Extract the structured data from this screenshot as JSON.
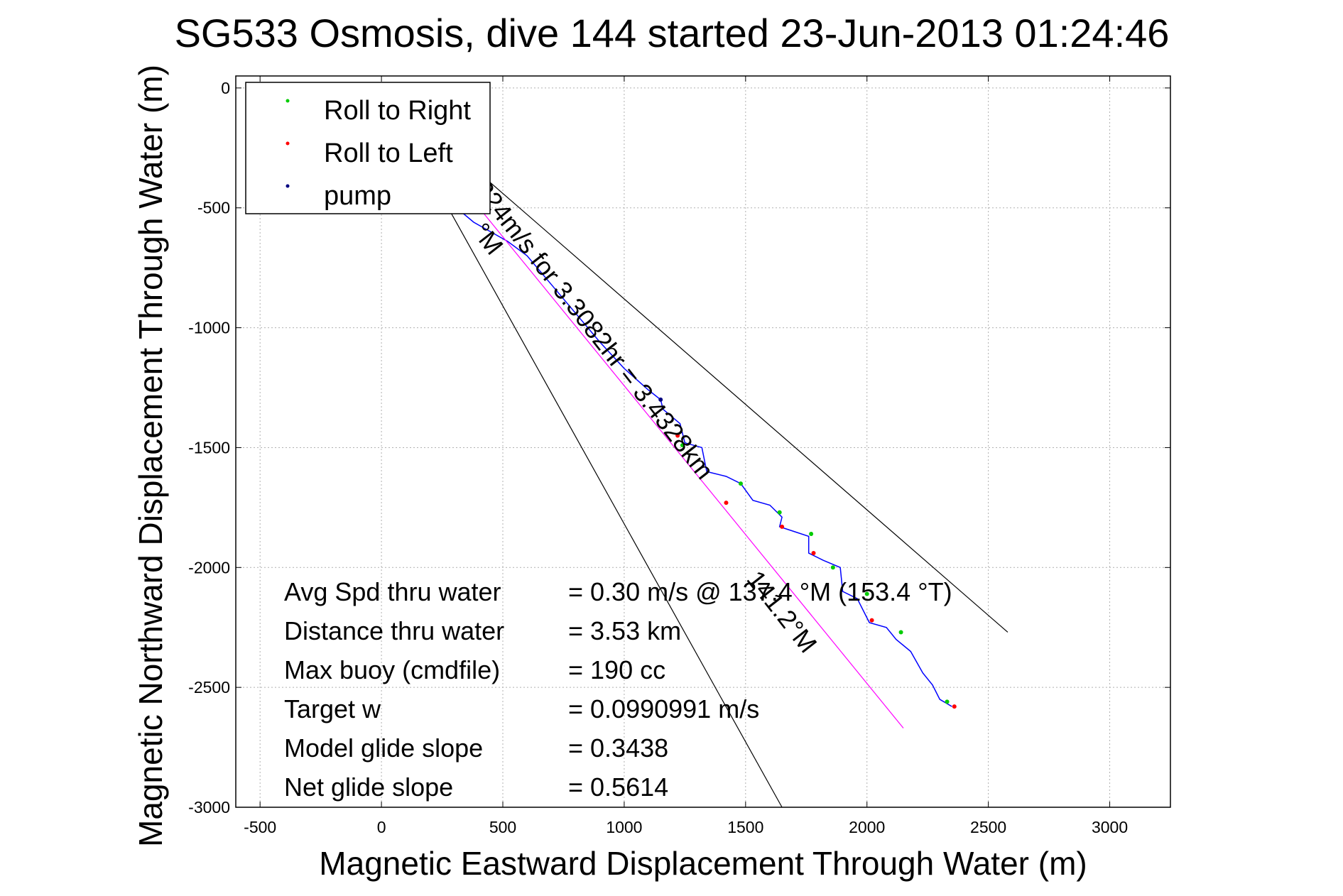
{
  "chart_data": {
    "type": "line",
    "title": "SG533 Osmosis, dive 144 started 23-Jun-2013 01:24:46",
    "xlabel": "Magnetic Eastward Displacement Through Water (m)",
    "ylabel": "Magnetic Northward Displacement Through Water (m)",
    "xlim": [
      -600,
      3250
    ],
    "ylim": [
      -3000,
      50
    ],
    "grid": true,
    "legend_position": "top-left",
    "x_ticks": [
      -500,
      0,
      500,
      1000,
      1500,
      2000,
      2500,
      3000
    ],
    "y_ticks": [
      0,
      -500,
      -1000,
      -1500,
      -2000,
      -2500,
      -3000
    ],
    "x_tick_labels": [
      "-500",
      "0",
      "500",
      "1000",
      "1500",
      "2000",
      "2500",
      "3000"
    ],
    "y_tick_labels": [
      "0",
      "-500",
      "-1000",
      "-1500",
      "-2000",
      "-2500",
      "-3000"
    ],
    "legend": [
      {
        "label": "Roll to Right",
        "color": "#00cc00"
      },
      {
        "label": "Roll to Left",
        "color": "#ff0000"
      },
      {
        "label": "pump",
        "color": "#000080"
      }
    ],
    "series": [
      {
        "name": "track",
        "color": "#0000ff",
        "points": [
          [
            0,
            0
          ],
          [
            60,
            -160
          ],
          [
            150,
            -320
          ],
          [
            250,
            -450
          ],
          [
            380,
            -560
          ],
          [
            520,
            -640
          ],
          [
            600,
            -700
          ],
          [
            700,
            -820
          ],
          [
            800,
            -940
          ],
          [
            900,
            -1060
          ],
          [
            1000,
            -1170
          ],
          [
            1100,
            -1260
          ],
          [
            1150,
            -1300
          ],
          [
            1160,
            -1340
          ],
          [
            1230,
            -1400
          ],
          [
            1250,
            -1480
          ],
          [
            1320,
            -1500
          ],
          [
            1340,
            -1600
          ],
          [
            1420,
            -1620
          ],
          [
            1480,
            -1650
          ],
          [
            1530,
            -1720
          ],
          [
            1600,
            -1740
          ],
          [
            1650,
            -1790
          ],
          [
            1640,
            -1830
          ],
          [
            1700,
            -1850
          ],
          [
            1760,
            -1870
          ],
          [
            1760,
            -1940
          ],
          [
            1820,
            -1970
          ],
          [
            1890,
            -2000
          ],
          [
            1900,
            -2100
          ],
          [
            1960,
            -2130
          ],
          [
            2010,
            -2230
          ],
          [
            2080,
            -2250
          ],
          [
            2120,
            -2300
          ],
          [
            2180,
            -2350
          ],
          [
            2230,
            -2440
          ],
          [
            2270,
            -2490
          ],
          [
            2300,
            -2550
          ],
          [
            2350,
            -2580
          ]
        ]
      },
      {
        "name": "current vector",
        "color": "#ff00ff",
        "points": [
          [
            0,
            0
          ],
          [
            2150,
            -2670
          ]
        ]
      },
      {
        "name": "bound 1",
        "color": "#000000",
        "points": [
          [
            0,
            0
          ],
          [
            2580,
            -2270
          ]
        ]
      },
      {
        "name": "bound 2",
        "color": "#000000",
        "points": [
          [
            0,
            0
          ],
          [
            1650,
            -3000
          ]
        ]
      }
    ],
    "roll_right_points": [
      [
        1240,
        -1490
      ],
      [
        1480,
        -1650
      ],
      [
        1640,
        -1770
      ],
      [
        1770,
        -1860
      ],
      [
        1860,
        -2000
      ],
      [
        2000,
        -2110
      ],
      [
        2140,
        -2270
      ],
      [
        2330,
        -2560
      ]
    ],
    "roll_left_points": [
      [
        0,
        0
      ],
      [
        1220,
        -1450
      ],
      [
        1420,
        -1730
      ],
      [
        1650,
        -1830
      ],
      [
        1780,
        -1940
      ],
      [
        2020,
        -2220
      ],
      [
        2360,
        -2580
      ]
    ],
    "pump_points": [
      [
        1150,
        -1300
      ]
    ],
    "annotations": [
      {
        "text": ".224m/s for 3.3082hr = 3.4328km",
        "x": 360,
        "y": -400,
        "rotation_deg": 52
      },
      {
        "text": "°M",
        "x": 370,
        "y": -600,
        "rotation_deg": 52
      },
      {
        "text": "141.2°M",
        "x": 1500,
        "y": -2050,
        "rotation_deg": 52
      }
    ],
    "stats": [
      {
        "label": "Avg Spd thru water",
        "value": "=  0.30 m/s @ 137.4  °M (153.4  °T)"
      },
      {
        "label": "Distance thru water",
        "value": "=  3.53 km"
      },
      {
        "label": "Max buoy (cmdfile)",
        "value": "= 190 cc"
      },
      {
        "label": "Target w",
        "value": "= 0.0990991 m/s"
      },
      {
        "label": "Model glide slope",
        "value": "= 0.3438"
      },
      {
        "label": "Net glide slope",
        "value": "= 0.5614"
      }
    ]
  }
}
